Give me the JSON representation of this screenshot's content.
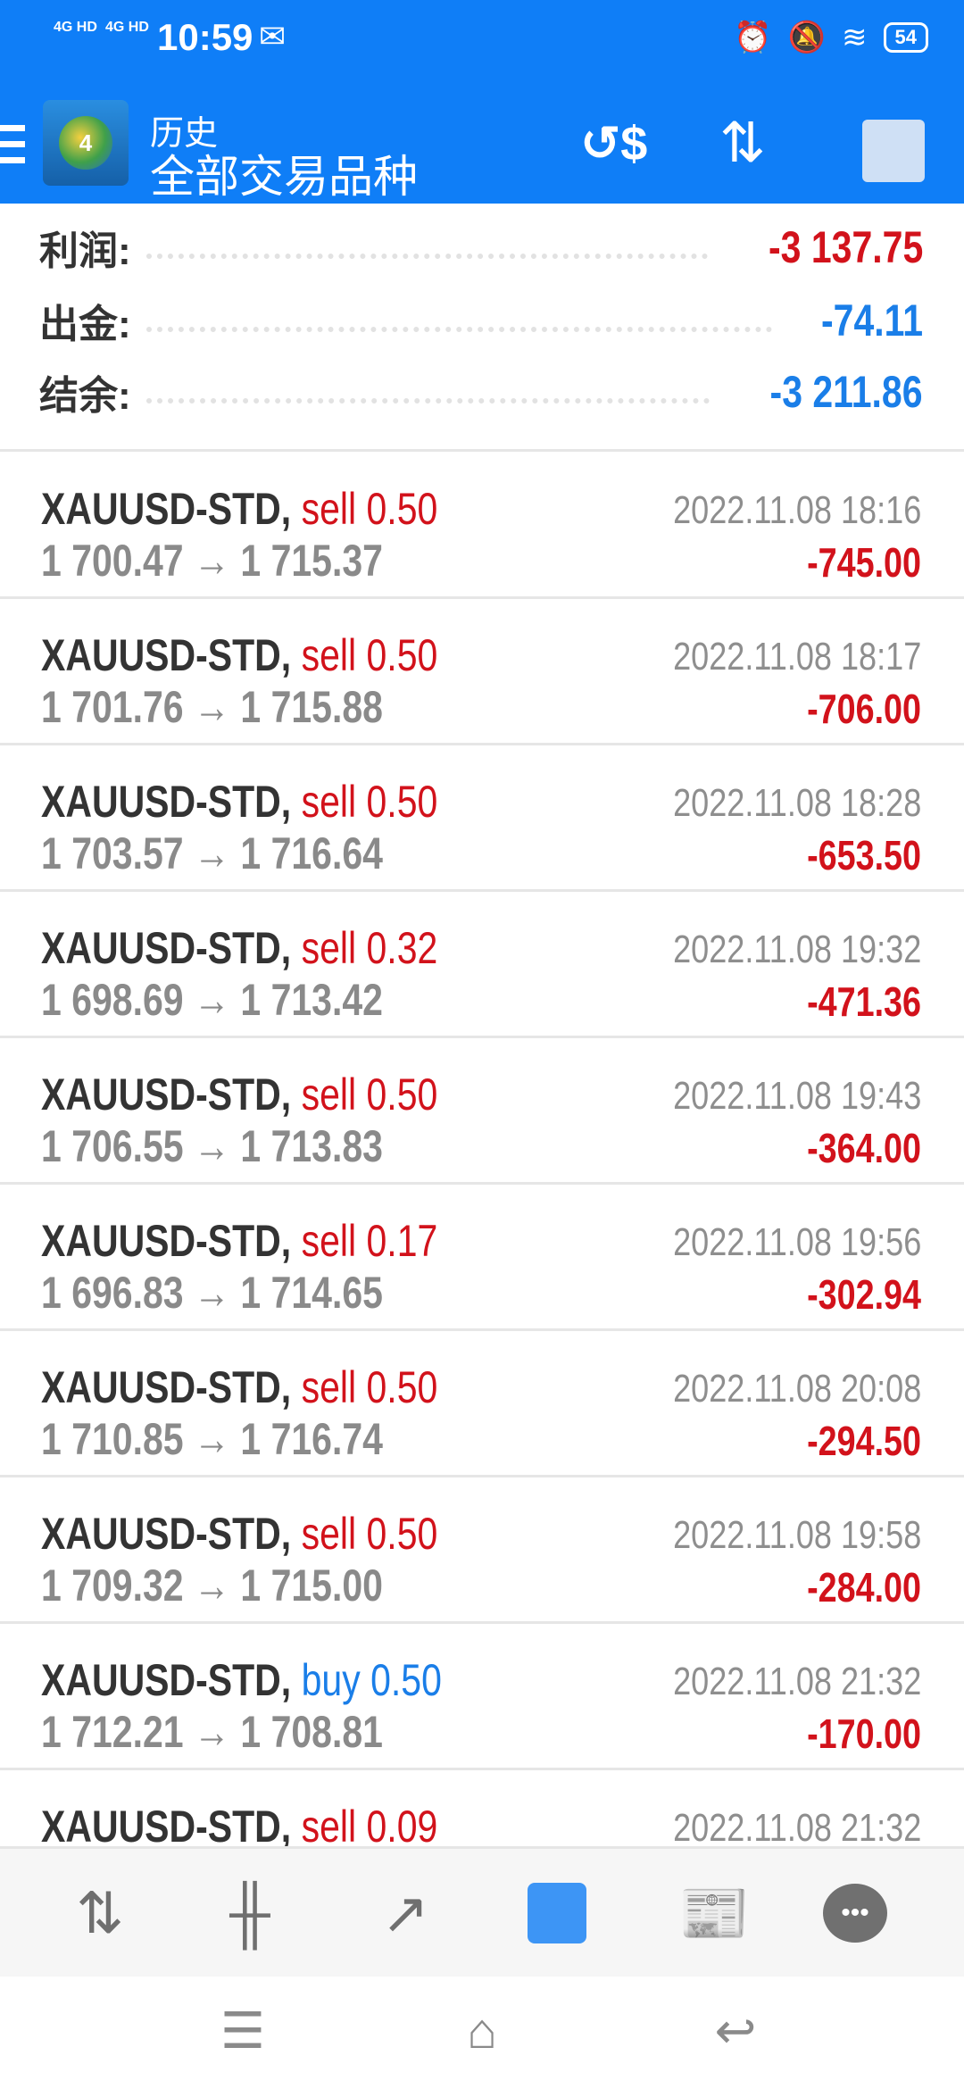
{
  "status_bar": {
    "signal1": "4G HD",
    "signal2": "4G HD",
    "time": "10:59",
    "battery": "54",
    "icons": [
      "wechat-icon",
      "app-icon",
      "alarm-icon",
      "mute-bell-icon",
      "wifi-icon",
      "battery-icon"
    ]
  },
  "app_bar": {
    "title": "历史",
    "subtitle": "全部交易品种",
    "actions": [
      "currency-exchange-icon",
      "sort-icon",
      "calendar-user-icon"
    ]
  },
  "summary": [
    {
      "label": "利润:",
      "value": "-3 137.75",
      "color": "#d2121b"
    },
    {
      "label": "出金:",
      "value": "-74.11",
      "color": "#1a7ee8"
    },
    {
      "label": "结余:",
      "value": "-3 211.86",
      "color": "#1a7ee8"
    }
  ],
  "trades": [
    {
      "symbol": "XAUUSD-STD,",
      "side": "sell 0.50",
      "prices": "1 700.47 → 1 715.37",
      "time": "2022.11.08 18:16",
      "profit": "-745.00"
    },
    {
      "symbol": "XAUUSD-STD,",
      "side": "sell 0.50",
      "prices": "1 701.76 → 1 715.88",
      "time": "2022.11.08 18:17",
      "profit": "-706.00"
    },
    {
      "symbol": "XAUUSD-STD,",
      "side": "sell 0.50",
      "prices": "1 703.57 → 1 716.64",
      "time": "2022.11.08 18:28",
      "profit": "-653.50"
    },
    {
      "symbol": "XAUUSD-STD,",
      "side": "sell 0.32",
      "prices": "1 698.69 → 1 713.42",
      "time": "2022.11.08 19:32",
      "profit": "-471.36"
    },
    {
      "symbol": "XAUUSD-STD,",
      "side": "sell 0.50",
      "prices": "1 706.55 → 1 713.83",
      "time": "2022.11.08 19:43",
      "profit": "-364.00"
    },
    {
      "symbol": "XAUUSD-STD,",
      "side": "sell 0.17",
      "prices": "1 696.83 → 1 714.65",
      "time": "2022.11.08 19:56",
      "profit": "-302.94"
    },
    {
      "symbol": "XAUUSD-STD,",
      "side": "sell 0.50",
      "prices": "1 710.85 → 1 716.74",
      "time": "2022.11.08 20:08",
      "profit": "-294.50"
    },
    {
      "symbol": "XAUUSD-STD,",
      "side": "sell 0.50",
      "prices": "1 709.32 → 1 715.00",
      "time": "2022.11.08 19:58",
      "profit": "-284.00"
    },
    {
      "symbol": "XAUUSD-STD,",
      "side": "buy 0.50",
      "prices": "1 712.21 → 1 708.81",
      "time": "2022.11.08 21:32",
      "profit": "-170.00"
    },
    {
      "symbol": "XAUUSD-STD,",
      "side": "sell 0.09",
      "prices": "",
      "time": "2022.11.08 21:32",
      "profit": ""
    }
  ],
  "colors": {
    "sell": "#d2121b",
    "buy": "#1a7ee8",
    "accent": "#0f7ef7"
  },
  "tabs": [
    {
      "icon": "quotes-icon",
      "active": false
    },
    {
      "icon": "chart-icon",
      "active": false
    },
    {
      "icon": "trade-icon",
      "active": false
    },
    {
      "icon": "history-icon",
      "active": true
    },
    {
      "icon": "news-icon",
      "active": false
    },
    {
      "icon": "chat-icon",
      "active": false
    }
  ]
}
